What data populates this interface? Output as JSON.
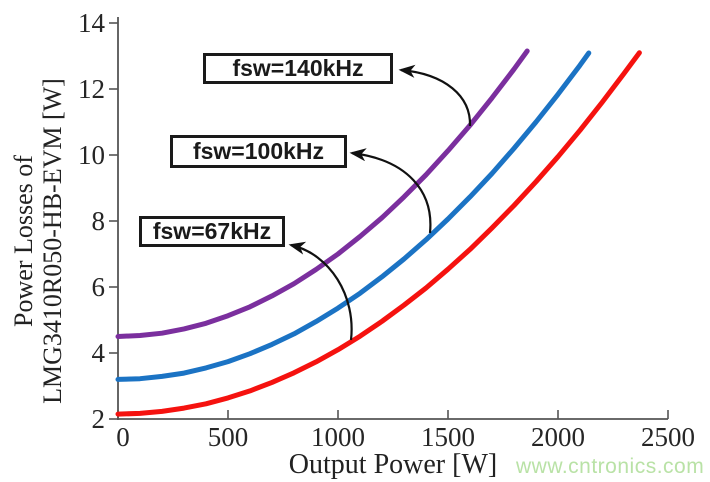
{
  "watermark": {
    "text": "www.cntronics.com",
    "color": "#b9e2a6"
  },
  "colors": {
    "axis": "#555555",
    "tick_text": "#262626",
    "annotation_border": "#1a1a1a",
    "arrow": "#111111"
  },
  "chart_data": {
    "type": "line",
    "title": "",
    "xlabel": "Output Power [W]",
    "ylabel_line1": "Power Losses of",
    "ylabel_line2": "LMG3410R050-HB-EVM [W]",
    "xlim": [
      0,
      2500
    ],
    "ylim": [
      2,
      14
    ],
    "xticks": [
      0,
      500,
      1000,
      1500,
      2000,
      2500
    ],
    "yticks": [
      2,
      4,
      6,
      8,
      10,
      12,
      14
    ],
    "grid": false,
    "legend_position": "callout-boxes-with-arrows",
    "series": [
      {
        "name": "fsw=67kHz",
        "color": "#f5120f",
        "x": [
          0,
          100,
          200,
          300,
          400,
          500,
          600,
          700,
          800,
          900,
          1000,
          1100,
          1200,
          1300,
          1400,
          1500,
          1600,
          1700,
          1800,
          1900,
          2000,
          2100,
          2200,
          2300,
          2370
        ],
        "y": [
          2.15,
          2.17,
          2.23,
          2.33,
          2.46,
          2.64,
          2.85,
          3.11,
          3.4,
          3.73,
          4.1,
          4.51,
          4.96,
          5.45,
          5.97,
          6.54,
          7.14,
          7.79,
          8.47,
          9.19,
          9.95,
          10.75,
          11.59,
          12.47,
          13.1
        ]
      },
      {
        "name": "fsw=100kHz",
        "color": "#1b73c4",
        "x": [
          0,
          100,
          200,
          300,
          400,
          500,
          600,
          700,
          800,
          900,
          1000,
          1100,
          1200,
          1300,
          1400,
          1500,
          1600,
          1700,
          1800,
          1900,
          2000,
          2100,
          2140
        ],
        "y": [
          3.2,
          3.22,
          3.29,
          3.39,
          3.55,
          3.74,
          3.98,
          4.26,
          4.58,
          4.95,
          5.36,
          5.81,
          6.31,
          6.85,
          7.43,
          8.06,
          8.73,
          9.44,
          10.2,
          11.0,
          11.84,
          12.72,
          13.09
        ]
      },
      {
        "name": "fsw=140kHz",
        "color": "#7b2f9e",
        "x": [
          0,
          100,
          200,
          300,
          400,
          500,
          600,
          700,
          800,
          900,
          1000,
          1100,
          1200,
          1300,
          1400,
          1500,
          1600,
          1700,
          1800,
          1860
        ],
        "y": [
          4.5,
          4.53,
          4.6,
          4.73,
          4.9,
          5.13,
          5.4,
          5.73,
          6.1,
          6.53,
          7.0,
          7.53,
          8.1,
          8.73,
          9.4,
          10.13,
          10.9,
          11.73,
          12.6,
          13.15
        ]
      }
    ],
    "annotations": [
      {
        "label": "fsw=140kHz",
        "points_to_series": "fsw=140kHz"
      },
      {
        "label": "fsw=100kHz",
        "points_to_series": "fsw=100kHz"
      },
      {
        "label": "fsw=67kHz",
        "points_to_series": "fsw=67kHz"
      }
    ]
  }
}
